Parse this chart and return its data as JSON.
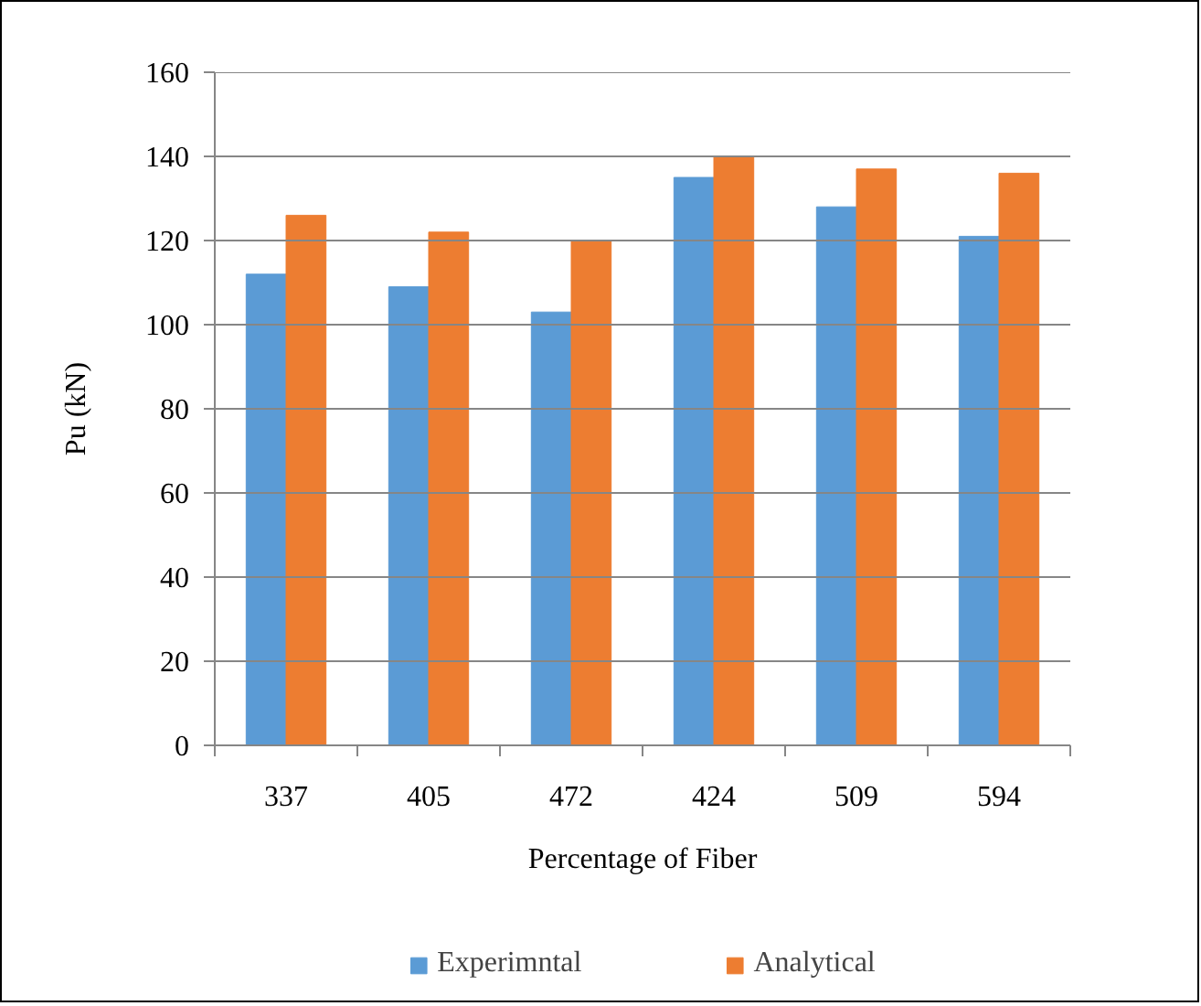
{
  "chart_data": {
    "type": "bar",
    "xlabel": "Percentage of Fiber",
    "ylabel": "Pu (kN)",
    "categories": [
      "337",
      "405",
      "472",
      "424",
      "509",
      "594"
    ],
    "series": [
      {
        "name": "Experimntal",
        "color": "#5b9bd5",
        "values": [
          112,
          109,
          103,
          135,
          128,
          121
        ]
      },
      {
        "name": "Analytical",
        "color": "#ed7d31",
        "values": [
          126,
          122,
          120,
          140,
          137,
          136
        ]
      }
    ],
    "ylim": [
      0,
      160
    ],
    "yticks": [
      0,
      20,
      40,
      60,
      80,
      100,
      120,
      140,
      160
    ],
    "grid": "y",
    "legend": "bottom"
  }
}
